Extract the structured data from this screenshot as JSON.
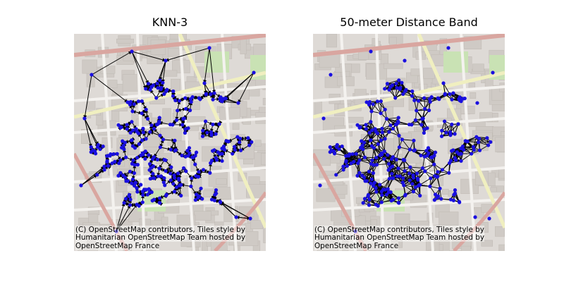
{
  "figure": {
    "panels": [
      {
        "title": "KNN-3",
        "attribution": "(C) OpenStreetMap contributors, Tiles style by Humanitarian OpenStreetMap Team hosted by OpenStreetMap France"
      },
      {
        "title": "50-meter Distance Band",
        "attribution": "(C) OpenStreetMap contributors, Tiles style by Humanitarian OpenStreetMap Team hosted by OpenStreetMap France"
      }
    ],
    "colors": {
      "node": "#1a0fe0",
      "edge": "#000000",
      "basemap_bg": "#dedad6",
      "building": "#cfcac5",
      "road_major": "#d9a6a0",
      "road_minor": "#f4f2ef",
      "road_yellow": "#f0efc0",
      "park": "#c9e2b4"
    }
  }
}
